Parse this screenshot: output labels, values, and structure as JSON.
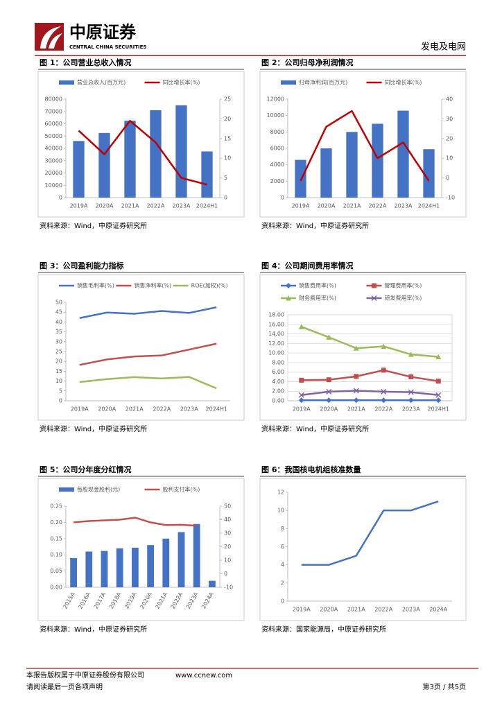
{
  "header": {
    "company": "中原证券",
    "company_en": "CENTRAL CHINA SECURITIES",
    "report_type": "发电及电网"
  },
  "chart_data": [
    {
      "type": "combo",
      "title": "图 1：公司营业总收入情况",
      "source": "资料来源：Wind，中原证券研究所",
      "categories": [
        "2019A",
        "2020A",
        "2021A",
        "2022A",
        "2023A",
        "2024H1"
      ],
      "series": [
        {
          "name": "营业总收入(百万元)",
          "type": "bar",
          "color": "#4472c4",
          "values": [
            46000,
            52500,
            62500,
            71000,
            75000,
            37500
          ]
        },
        {
          "name": "同比增长率(%)",
          "type": "line",
          "axis": "y2",
          "color": "#c00000",
          "values": [
            17,
            11,
            19.5,
            14,
            5,
            3.3
          ]
        }
      ],
      "ylim": [
        0,
        80000
      ],
      "yticks": [
        0,
        10000,
        20000,
        30000,
        40000,
        50000,
        60000,
        70000,
        80000
      ],
      "y2lim": [
        0,
        25
      ],
      "y2ticks": [
        0,
        5,
        10,
        15,
        20,
        25
      ],
      "grid": false
    },
    {
      "type": "combo",
      "title": "图 2：公司归母净利润情况",
      "source": "资料来源：Wind，中原证券研究所",
      "categories": [
        "2019A",
        "2020A",
        "2021A",
        "2022A",
        "2023A",
        "2024H1"
      ],
      "series": [
        {
          "name": "归母净利润(百万元)",
          "type": "bar",
          "color": "#4472c4",
          "values": [
            4600,
            6000,
            8000,
            9000,
            10600,
            5900
          ]
        },
        {
          "name": "同比增长率(%)",
          "type": "line",
          "axis": "y2",
          "color": "#c00000",
          "values": [
            -1.5,
            26,
            34,
            10,
            18,
            -1.5
          ]
        }
      ],
      "ylim": [
        0,
        12000
      ],
      "yticks": [
        0,
        2000,
        4000,
        6000,
        8000,
        10000,
        12000
      ],
      "y2lim": [
        -10,
        40
      ],
      "y2ticks": [
        -10,
        0,
        10,
        20,
        30,
        40
      ],
      "grid": false
    },
    {
      "type": "line",
      "title": "图 3：公司盈利能力指标",
      "source": "资料来源：Wind，中原证券研究所",
      "categories": [
        "2019A",
        "2020A",
        "2021A",
        "2022A",
        "2023A",
        "2024H1"
      ],
      "series": [
        {
          "name": "销售毛利率(%)",
          "type": "line",
          "color": "#4472c4",
          "values": [
            42,
            44.8,
            44.2,
            45.6,
            44.6,
            47.5
          ]
        },
        {
          "name": "销售净利率(%)",
          "type": "line",
          "color": "#c0504d",
          "values": [
            18.2,
            21,
            22.5,
            23,
            26,
            29
          ]
        },
        {
          "name": "ROE(加权)(%)",
          "type": "line",
          "color": "#9bbb59",
          "values": [
            9.5,
            11,
            12,
            11.3,
            12.1,
            6.3
          ]
        }
      ],
      "ylim": [
        0,
        50
      ],
      "yticks": [
        0,
        5,
        10,
        15,
        20,
        25,
        30,
        35,
        40,
        45,
        50
      ],
      "grid": false
    },
    {
      "type": "line",
      "title": "图 4：公司期间费用率情况",
      "source": "资料来源：Wind，中原证券研究所",
      "categories": [
        "2019A",
        "2020A",
        "2021A",
        "2022A",
        "2023A",
        "2024H1"
      ],
      "series": [
        {
          "name": "销售费用率(%)",
          "type": "line",
          "marker": "diamond",
          "color": "#4472c4",
          "values": [
            0.1,
            0.1,
            0.1,
            0.1,
            0.1,
            0.1
          ]
        },
        {
          "name": "管理费用率(%)",
          "type": "line",
          "marker": "square",
          "color": "#c0504d",
          "values": [
            4.3,
            4.4,
            5.1,
            6.4,
            5.0,
            4.1
          ]
        },
        {
          "name": "财务费用率(%)",
          "type": "line",
          "marker": "triangle",
          "color": "#9bbb59",
          "values": [
            15.5,
            13.3,
            11.0,
            11.4,
            9.7,
            9.2
          ]
        },
        {
          "name": "研发费用率(%)",
          "type": "line",
          "marker": "cross",
          "color": "#8064a2",
          "values": [
            1.2,
            1.9,
            2.1,
            1.9,
            1.8,
            1.2
          ]
        }
      ],
      "ylim": [
        0,
        18
      ],
      "yticks": [
        {
          "value": 0,
          "label": "0.00"
        },
        {
          "value": 2,
          "label": "2.00"
        },
        {
          "value": 4,
          "label": "4.00"
        },
        {
          "value": 6,
          "label": "6.00"
        },
        {
          "value": 8,
          "label": "8.00"
        },
        {
          "value": 10,
          "label": "10.00"
        },
        {
          "value": 12,
          "label": "12.00"
        },
        {
          "value": 14,
          "label": "14.00"
        },
        {
          "value": 16,
          "label": "16.00"
        },
        {
          "value": 18,
          "label": "18.00"
        }
      ],
      "grid": true
    },
    {
      "type": "combo",
      "title": "图 5：公司分年度分红情况",
      "source": "资料来源：Wind，中原证券研究所",
      "categories": [
        "2015A",
        "2016A",
        "2017A",
        "2018A",
        "2019A",
        "2020A",
        "2021A",
        "2022A",
        "2023A",
        "2024A"
      ],
      "series": [
        {
          "name": "每股现金股利(元)",
          "type": "bar",
          "color": "#4472c4",
          "values": [
            0.09,
            0.11,
            0.112,
            0.12,
            0.122,
            0.13,
            0.15,
            0.17,
            0.195,
            0.02
          ]
        },
        {
          "name": "股利支付率(%)",
          "type": "line",
          "axis": "y2",
          "color": "#c0504d",
          "values": [
            38,
            39,
            39.5,
            40,
            41.5,
            38,
            36,
            36.2,
            35.5,
            null
          ]
        }
      ],
      "ylim": [
        0,
        0.25
      ],
      "yticks": [
        {
          "value": 0,
          "label": "0.00"
        },
        {
          "value": 0.05,
          "label": "0.05"
        },
        {
          "value": 0.1,
          "label": "0.10"
        },
        {
          "value": 0.15,
          "label": "0.15"
        },
        {
          "value": 0.2,
          "label": "0.20"
        },
        {
          "value": 0.25,
          "label": "0.25"
        }
      ],
      "y2lim": [
        -10,
        50
      ],
      "y2ticks": [
        -10,
        0,
        10,
        20,
        30,
        40,
        50
      ],
      "grid": false
    },
    {
      "type": "line",
      "title": "图 6：我国核电机组核准数量",
      "source": "资料来源：国家能源局，中原证券研究所",
      "categories": [
        "2019A",
        "2020A",
        "2021A",
        "2022A",
        "2023A",
        "2024A"
      ],
      "series": [
        {
          "type": "line",
          "color": "#4472c4",
          "values": [
            4,
            4,
            5,
            10,
            10,
            11
          ]
        }
      ],
      "ylim": [
        0,
        12
      ],
      "yticks": [
        0,
        2,
        4,
        6,
        8,
        10,
        12
      ],
      "grid": false
    }
  ],
  "footer": {
    "copyright": "本报告版权属于中原证券股份有限公司",
    "website": "www.ccnew.com",
    "page": "第3页 / 共5页",
    "notice": "请阅读最后一页各项声明"
  }
}
